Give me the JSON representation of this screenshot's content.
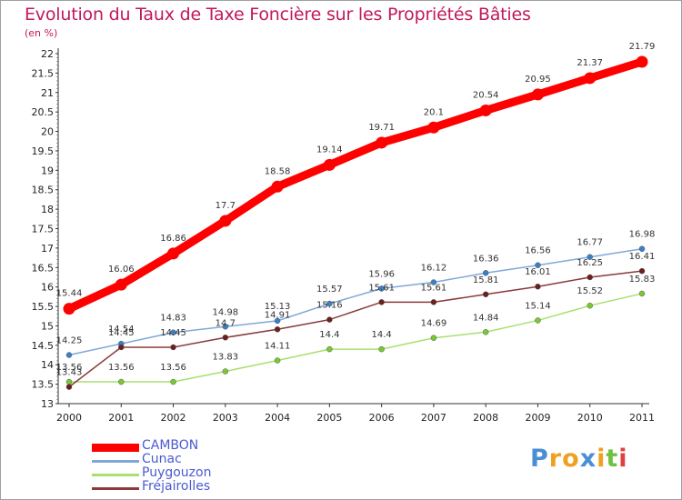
{
  "header": {
    "title": "Evolution du Taux de Taxe Foncière sur les Propriétés Bâties",
    "subtitle": "(en %)"
  },
  "chart_data": {
    "type": "line",
    "title": "Evolution du Taux de Taxe Foncière sur les Propriétés Bâties",
    "ylabel": "(en %)",
    "xlabel": "",
    "x": [
      2000,
      2001,
      2002,
      2003,
      2004,
      2005,
      2006,
      2007,
      2008,
      2009,
      2010,
      2011
    ],
    "ylim": [
      13,
      22
    ],
    "yticks": [
      "13",
      "13.5",
      "14",
      "14.5",
      "15",
      "15.5",
      "16",
      "16.5",
      "17",
      "17.5",
      "18",
      "18.5",
      "19",
      "19.5",
      "20",
      "20.5",
      "21",
      "21.5",
      "22"
    ],
    "grid": false,
    "legend": "bottom-left",
    "series": [
      {
        "name": "CAMBON",
        "color": "#ff0000",
        "thick": true,
        "values": [
          15.44,
          16.06,
          16.86,
          17.7,
          18.58,
          19.14,
          19.71,
          20.1,
          20.54,
          20.95,
          21.37,
          21.79
        ],
        "labels": [
          "15.44",
          "16.06",
          "16.86",
          "17.7",
          "18.58",
          "19.14",
          "19.71",
          "20.1",
          "20.54",
          "20.95",
          "21.37",
          "21.79"
        ]
      },
      {
        "name": "Cunac",
        "color": "#7fa8d8",
        "marker": "#3a80c8",
        "values": [
          14.25,
          14.54,
          14.83,
          14.98,
          15.13,
          15.57,
          15.96,
          16.12,
          16.36,
          16.56,
          16.77,
          16.98
        ],
        "labels": [
          "14.25",
          "14.54",
          "14.83",
          "14.98",
          "15.13",
          "15.57",
          "15.96",
          "16.12",
          "16.36",
          "16.56",
          "16.77",
          "16.98"
        ]
      },
      {
        "name": "Puygouzon",
        "color": "#a8e070",
        "marker": "#7ac832",
        "values": [
          13.56,
          13.56,
          13.56,
          13.83,
          14.11,
          14.4,
          14.4,
          14.69,
          14.84,
          15.14,
          15.52,
          15.83
        ],
        "labels": [
          "13.56",
          "13.56",
          "13.56",
          "13.83",
          "14.11",
          "14.4",
          "14.4",
          "14.69",
          "14.84",
          "15.14",
          "15.52",
          "15.83"
        ]
      },
      {
        "name": "Fréjairolles",
        "color": "#8b3a3a",
        "marker": "#6b1f1f",
        "values": [
          13.43,
          14.45,
          14.45,
          14.7,
          14.91,
          15.16,
          15.61,
          15.61,
          15.81,
          16.01,
          16.25,
          16.41
        ],
        "labels": [
          "13.43",
          "14.45",
          "14.45",
          "14.7",
          "14.91",
          "15.16",
          "15.61",
          "15.61",
          "15.81",
          "16.01",
          "16.25",
          "16.41"
        ]
      }
    ]
  },
  "logo": {
    "letters": [
      "P",
      "r",
      "o",
      "x",
      "i",
      "t",
      "i"
    ],
    "colors": [
      "#4a8fd4",
      "#f0a020",
      "#f0a020",
      "#4a8fd4",
      "#f0a020",
      "#70c040",
      "#e04040"
    ]
  }
}
